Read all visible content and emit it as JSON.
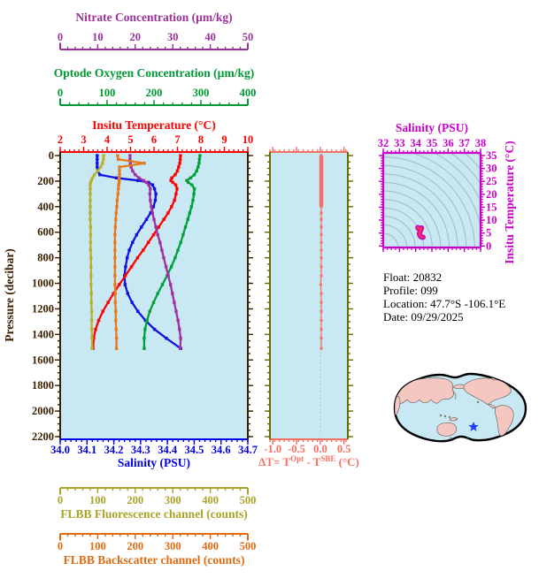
{
  "figure_title": "Argo float profile plot",
  "chart_data": {
    "type": "line",
    "plot_bg": "#C8E9F4",
    "zero_line_color": "#BBBBBB",
    "contour_color": "#9FBAC2",
    "axes": {
      "nitrate": {
        "title": "Nitrate Concentration (µm/kg)",
        "color": "#993399",
        "min": 0,
        "max": 50,
        "minor": 2,
        "tick_labels": [
          "0",
          "10",
          "20",
          "30",
          "40",
          "50"
        ]
      },
      "oxygen": {
        "title": "Optode Oxygen Concentration (µm/kg)",
        "color": "#009933",
        "min": 0,
        "max": 400,
        "minor": 20,
        "tick_labels": [
          "0",
          "100",
          "200",
          "300",
          "400"
        ]
      },
      "temp": {
        "title": "Insitu Temperature (°C)",
        "color": "#FF0000",
        "min": 2,
        "max": 10,
        "minor": 0.2,
        "tick_labels": [
          "2",
          "3",
          "4",
          "5",
          "6",
          "7",
          "8",
          "9",
          "10"
        ]
      },
      "sal": {
        "title": "Salinity (PSU)",
        "color": "#0000E6",
        "min": 34.0,
        "max": 34.7,
        "minor": 0.02,
        "tick_labels": [
          "34.0",
          "34.1",
          "34.2",
          "34.3",
          "34.4",
          "34.5",
          "34.6",
          "34.7"
        ]
      },
      "fluor": {
        "title": "FLBB Fluorescence channel (counts)",
        "color": "#A8A428",
        "min": 0,
        "max": 500,
        "minor": 20,
        "tick_labels": [
          "0",
          "100",
          "200",
          "300",
          "400",
          "500"
        ]
      },
      "backsc": {
        "title": "FLBB Backscatter channel (counts)",
        "color": "#E06A10",
        "min": 0,
        "max": 500,
        "minor": 20,
        "tick_labels": [
          "0",
          "100",
          "200",
          "300",
          "400",
          "500"
        ]
      },
      "pressure": {
        "title": "Pressure (decibar)",
        "color": "#3D2000",
        "min": 0,
        "max": 2200,
        "minor": 50,
        "tick_labels": [
          "0",
          "200",
          "400",
          "600",
          "800",
          "1000",
          "1200",
          "1400",
          "1600",
          "1800",
          "2000",
          "2200"
        ]
      },
      "dt": {
        "title_parts": {
          "pre": "ΔT= T",
          "sup1": "Opt",
          "mid": " - T",
          "sup2": "SBE",
          "post": " (°C)"
        },
        "color": "#F86F63",
        "side_color": "#6B6B00",
        "min": -1.06,
        "max": 0.58,
        "minor": 0.1,
        "tick_values": [
          -1.0,
          -0.5,
          0.0,
          0.5
        ],
        "tick_labels": [
          "-1.0",
          "-0.5",
          "0.0",
          "0.5"
        ]
      },
      "ts_sal": {
        "title": "Salinity (PSU)",
        "color": "#CC00CC",
        "min": 32,
        "max": 38,
        "minor": 0.25,
        "tick_labels": [
          "32",
          "33",
          "34",
          "35",
          "36",
          "37",
          "38"
        ]
      },
      "ts_temp": {
        "title": "Insitu Temperature (°C)",
        "color": "#CC00CC",
        "min": 0,
        "max": 35,
        "minor": 1,
        "tick_labels": [
          "0",
          "5",
          "10",
          "15",
          "20",
          "25",
          "30",
          "35"
        ]
      }
    },
    "pressures": [
      0,
      30,
      60,
      90,
      120,
      150,
      175,
      195,
      210,
      230,
      260,
      300,
      350,
      400,
      450,
      500,
      560,
      620,
      680,
      740,
      800,
      870,
      940,
      1010,
      1080,
      1150,
      1220,
      1290,
      1360,
      1430,
      1510
    ],
    "series": [
      {
        "name": "salinity",
        "axis": "sal",
        "color": "#1212E0",
        "values": [
          34.138,
          34.138,
          34.138,
          34.138,
          34.14,
          34.148,
          34.21,
          34.29,
          34.33,
          34.345,
          34.352,
          34.357,
          34.355,
          34.348,
          34.337,
          34.322,
          34.303,
          34.285,
          34.27,
          34.258,
          34.25,
          34.244,
          34.24,
          34.242,
          34.252,
          34.268,
          34.29,
          34.318,
          34.352,
          34.396,
          34.45
        ]
      },
      {
        "name": "insitu-temperature",
        "axis": "temp",
        "color": "#FF0000",
        "values": [
          7.13,
          7.12,
          7.1,
          7.05,
          7.0,
          6.9,
          6.76,
          6.72,
          6.8,
          6.93,
          6.98,
          6.94,
          6.87,
          6.75,
          6.6,
          6.42,
          6.2,
          5.98,
          5.76,
          5.54,
          5.3,
          5.04,
          4.78,
          4.52,
          4.27,
          4.04,
          3.82,
          3.64,
          3.51,
          3.43,
          3.4
        ]
      },
      {
        "name": "optode-oxygen",
        "axis": "oxygen",
        "color": "#00A038",
        "values": [
          298,
          297,
          296,
          294,
          291,
          286,
          278,
          270,
          273,
          281,
          286,
          285,
          283,
          280,
          276,
          272,
          267,
          262,
          257,
          251,
          245,
          237,
          228,
          218,
          208,
          199,
          191,
          185,
          181,
          179,
          179
        ]
      },
      {
        "name": "nitrate",
        "axis": "nitrate",
        "color": "#A030A0",
        "values": [
          18.6,
          18.6,
          18.7,
          18.9,
          19.3,
          20.0,
          21.0,
          22.2,
          23.0,
          23.6,
          24.0,
          23.9,
          24.0,
          24.3,
          24.6,
          25.0,
          25.5,
          26.0,
          26.6,
          27.1,
          27.6,
          28.2,
          28.8,
          29.4,
          29.9,
          30.4,
          30.9,
          31.4,
          31.8,
          32.1,
          32.0
        ]
      },
      {
        "name": "flbb-fluorescence",
        "axis": "fluor",
        "color": "#B8B030",
        "values": [
          116,
          115,
          113,
          108,
          100,
          91,
          86,
          83,
          81,
          80,
          80,
          80,
          80,
          80,
          80,
          80,
          81,
          81,
          81,
          81,
          82,
          82,
          82,
          82,
          83,
          83,
          84,
          84,
          84,
          85,
          85
        ]
      },
      {
        "name": "flbb-backscatter",
        "axis": "backsc",
        "color": "#E8781A",
        "values": [
          153,
          155,
          224,
          158,
          158,
          158,
          157,
          157,
          157,
          156,
          155,
          154,
          152,
          151,
          149,
          148,
          147,
          146,
          146,
          146,
          146,
          146,
          146,
          146,
          147,
          147,
          148,
          148,
          149,
          150,
          150
        ]
      }
    ],
    "delta_t_values": [
      0.02,
      0.02,
      0.02,
      0.02,
      0.02,
      0.02,
      0.02,
      0.02,
      0.02,
      0.02,
      0.02,
      0.02,
      0.02,
      0.02,
      0.02,
      0.02,
      0.02,
      0.02,
      0.02,
      0.02,
      0.02,
      0.02,
      0.02,
      0.01,
      0.02,
      0.02,
      0.02,
      0.02,
      0.02,
      0.02,
      0.02
    ],
    "ts_blob_colors": {
      "outer": "#CC00CC",
      "inner": "#FF3344"
    }
  },
  "float_info": {
    "lines": [
      "Float:  20832",
      "Profile:  099",
      "Location:  47.7°S  -106.1°E",
      "Date:  09/29/2025"
    ]
  },
  "map": {
    "ocean_color": "#C8E9F4",
    "land_color": "#F4C7C0",
    "star_color": "#1E3CFF"
  }
}
